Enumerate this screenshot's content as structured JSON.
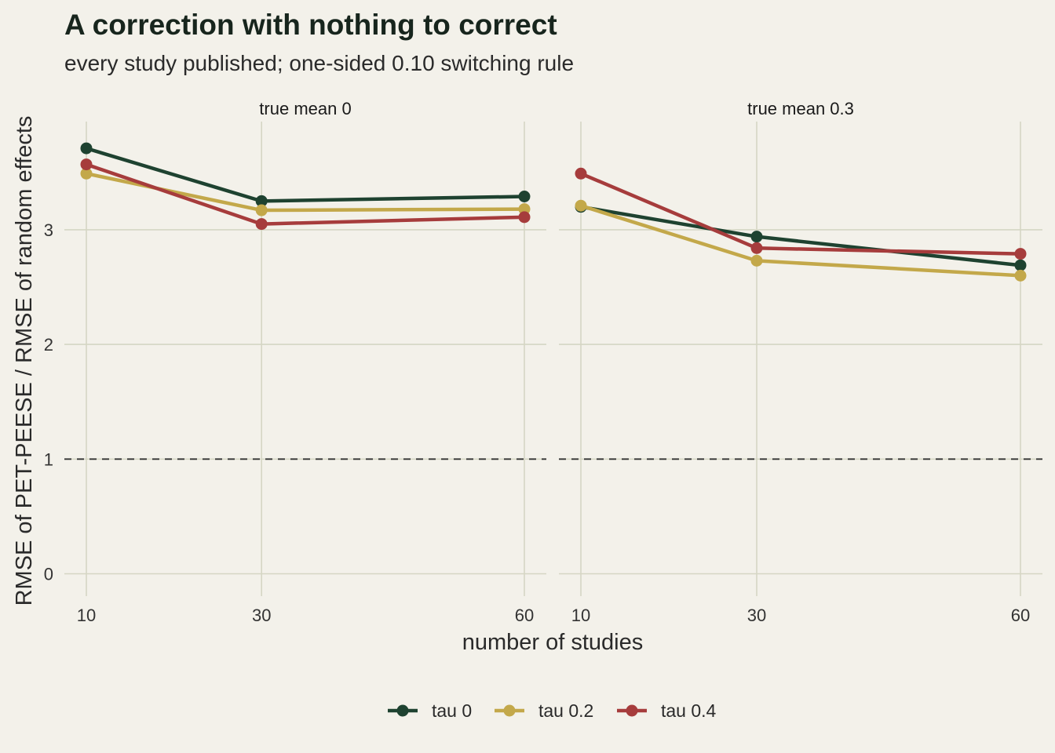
{
  "chart_data": {
    "type": "line",
    "title": "A correction with nothing to correct",
    "subtitle": "every study published; one-sided 0.10 switching rule",
    "xlabel": "number of studies",
    "ylabel": "RMSE of PET-PEESE / RMSE of random effects",
    "x": [
      10,
      30,
      60
    ],
    "x_tick_labels": [
      "10",
      "30",
      "60"
    ],
    "y_ticks": [
      0,
      1,
      2,
      3
    ],
    "ylim": [
      0,
      3.95
    ],
    "reference_line": {
      "y": 1,
      "style": "dashed"
    },
    "grid": true,
    "legend_position": "bottom",
    "colors": {
      "tau 0": "#1e4230",
      "tau 0.2": "#c3a84a",
      "tau 0.4": "#a63c3c"
    },
    "panels": [
      {
        "label": "true mean 0",
        "series": [
          {
            "name": "tau 0",
            "values": [
              3.71,
              3.25,
              3.29
            ]
          },
          {
            "name": "tau 0.2",
            "values": [
              3.49,
              3.17,
              3.18
            ]
          },
          {
            "name": "tau 0.4",
            "values": [
              3.57,
              3.05,
              3.11
            ]
          }
        ]
      },
      {
        "label": "true mean 0.3",
        "series": [
          {
            "name": "tau 0",
            "values": [
              3.2,
              2.94,
              2.69
            ]
          },
          {
            "name": "tau 0.2",
            "values": [
              3.21,
              2.73,
              2.6
            ]
          },
          {
            "name": "tau 0.4",
            "values": [
              3.49,
              2.84,
              2.79
            ]
          }
        ]
      }
    ]
  }
}
